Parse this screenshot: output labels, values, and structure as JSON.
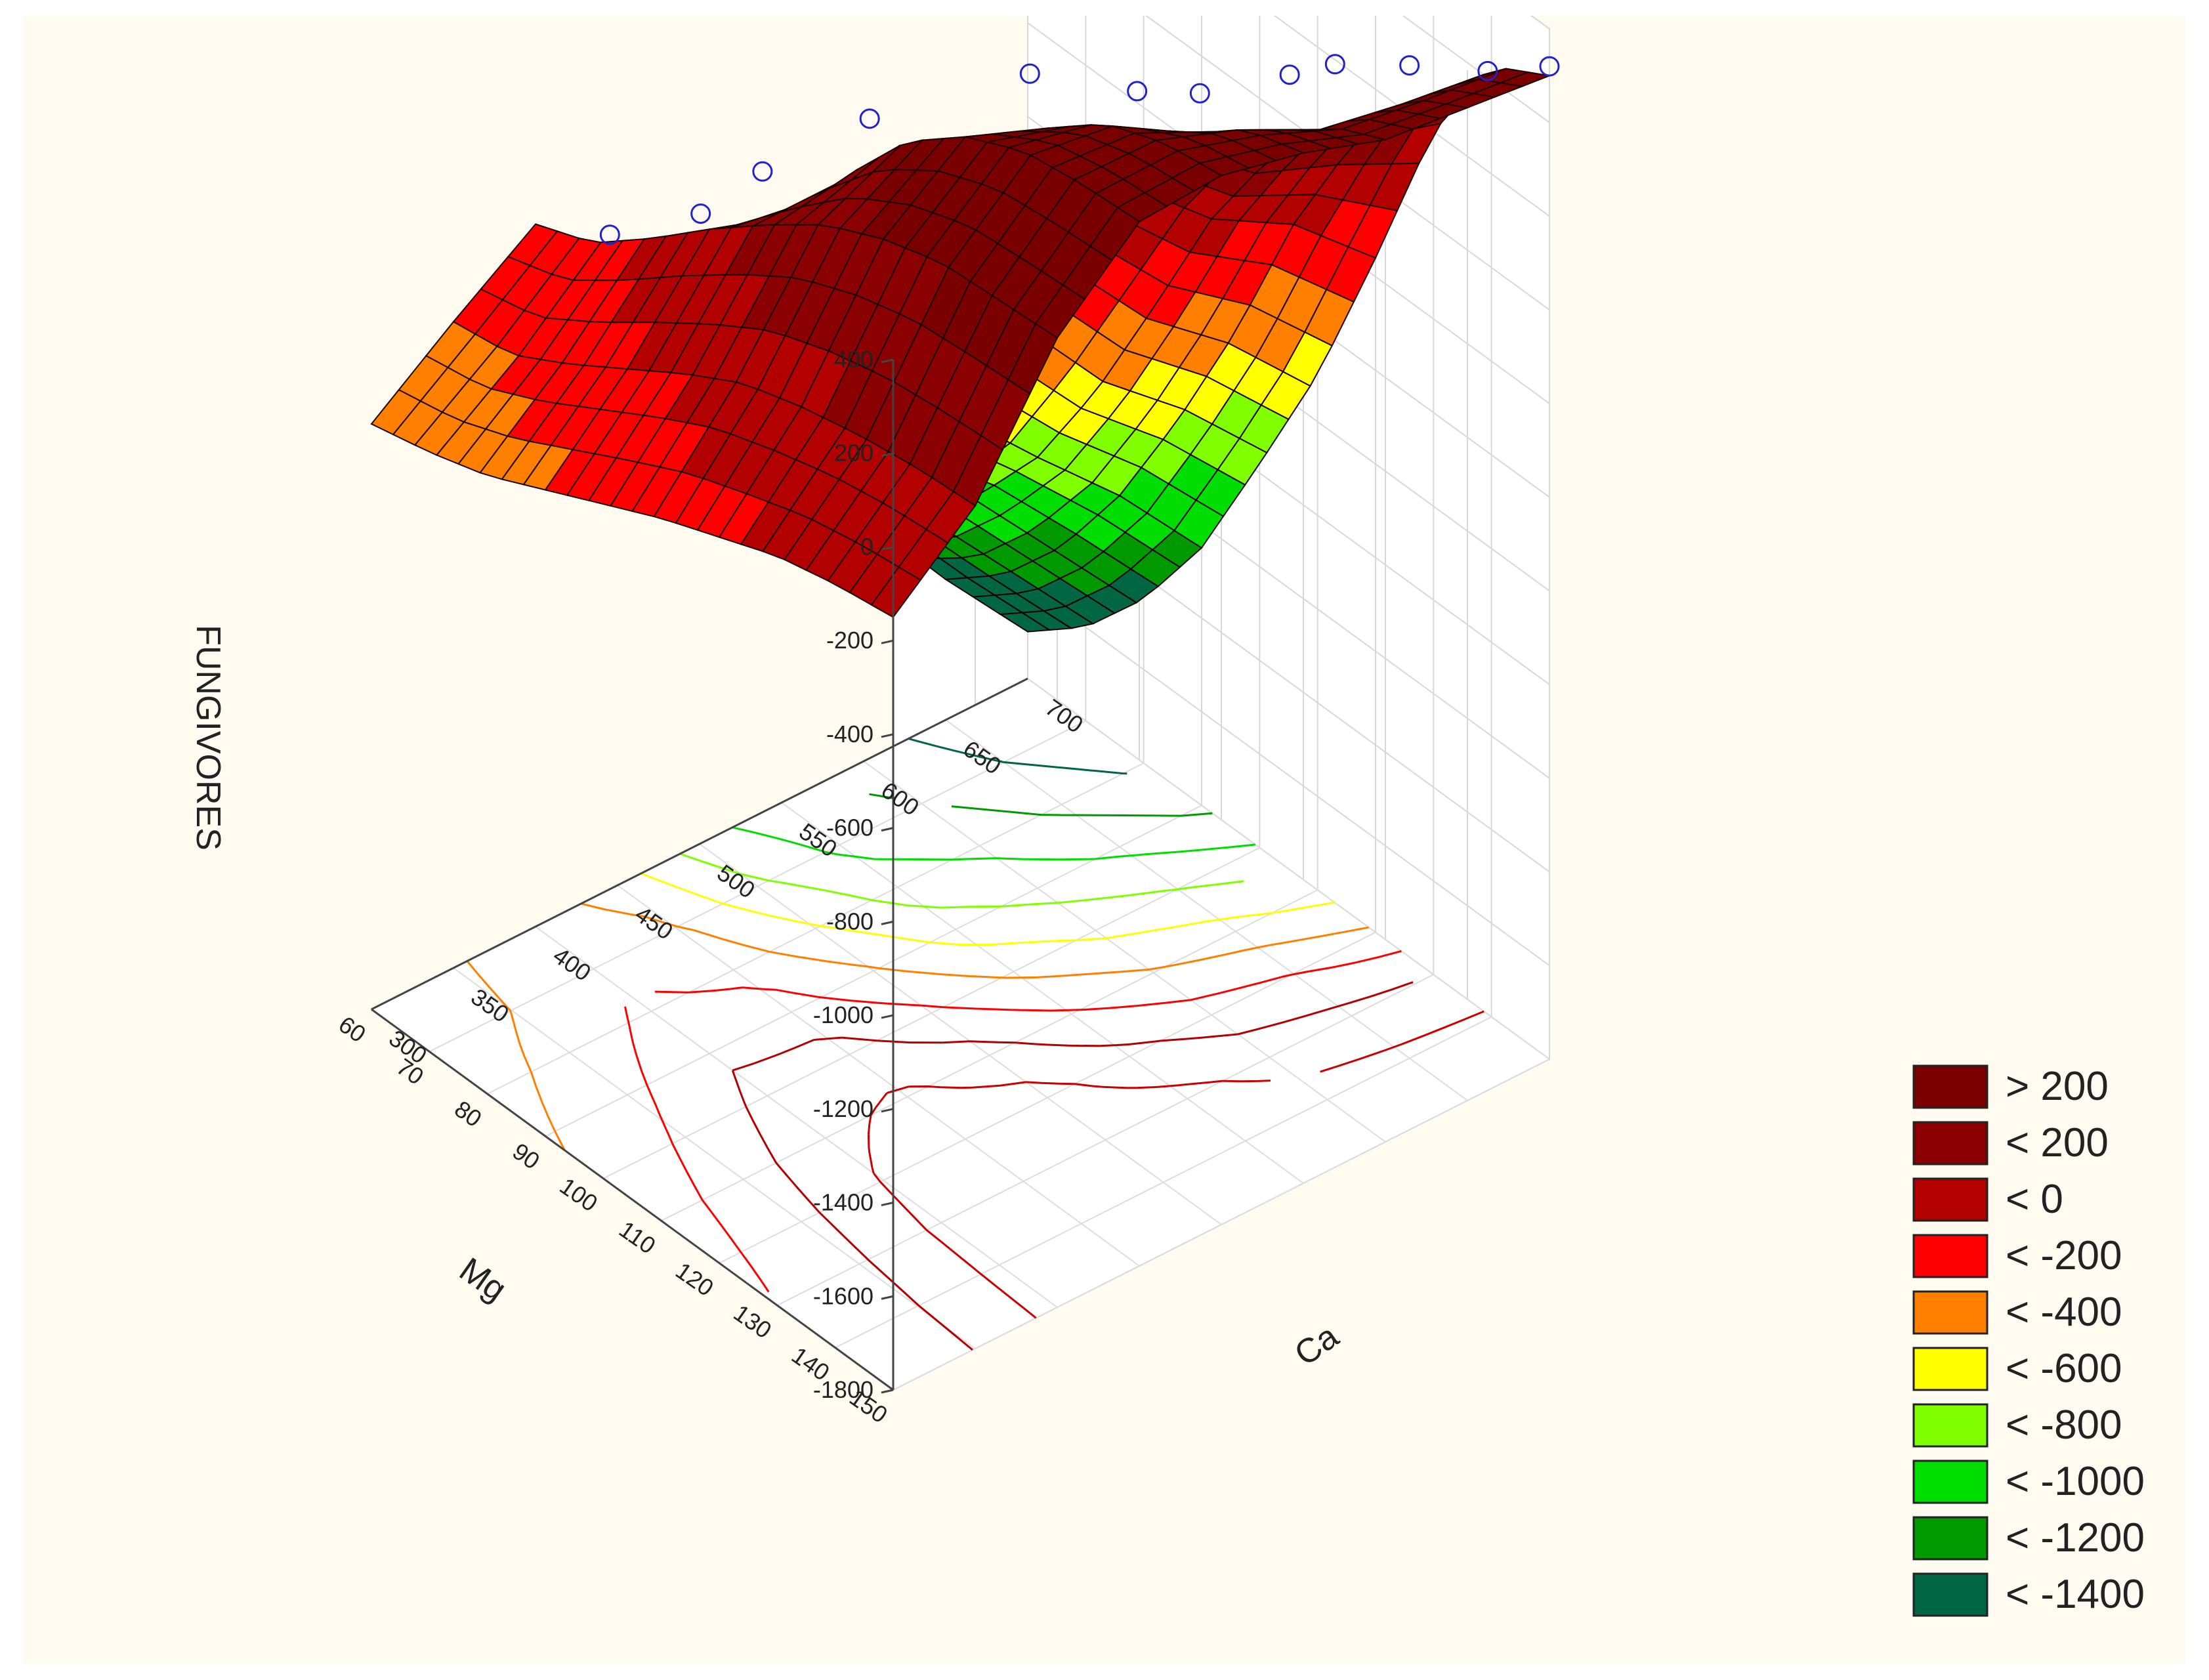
{
  "chart_data": {
    "type": "surface3d",
    "title": "",
    "zlabel": "FUNGIVORES",
    "xlabel": "Mg",
    "ylabel": "Ca",
    "x_ticks": [
      "150",
      "140",
      "130",
      "120",
      "110",
      "100",
      "90",
      "80",
      "70",
      "60"
    ],
    "x_range": [
      60,
      150
    ],
    "y_ticks": [
      "300",
      "350",
      "400",
      "450",
      "500",
      "550",
      "600",
      "650",
      "700"
    ],
    "y_range": [
      300,
      700
    ],
    "z_ticks": [
      "400",
      "200",
      "0",
      "-200",
      "-400",
      "-600",
      "-800",
      "-1000",
      "-1200",
      "-1400",
      "-1600",
      "-1800"
    ],
    "z_range": [
      -1800,
      400
    ],
    "grid": true,
    "background": "#fffbf0",
    "legend_placement": "bottom-right",
    "legend": [
      {
        "label": "> 200",
        "color": "#7a0000"
      },
      {
        "label": "< 200",
        "color": "#8b0000"
      },
      {
        "label": "< 0",
        "color": "#b30000"
      },
      {
        "label": "< -200",
        "color": "#ff0000"
      },
      {
        "label": "< -400",
        "color": "#ff8000"
      },
      {
        "label": "< -600",
        "color": "#ffff00"
      },
      {
        "label": "< -800",
        "color": "#80ff00"
      },
      {
        "label": "< -1000",
        "color": "#00dd00"
      },
      {
        "label": "< -1200",
        "color": "#009900"
      },
      {
        "label": "< -1400",
        "color": "#006644"
      }
    ],
    "surface_grid": {
      "mg_values": [
        60,
        70,
        80,
        90,
        100,
        110,
        120,
        130,
        140,
        150
      ],
      "ca_values": [
        300,
        350,
        400,
        450,
        500,
        550,
        600,
        650,
        700
      ],
      "z": [
        [
          -550,
          -420,
          -300,
          -480,
          -900,
          -1150,
          -1280,
          -1500,
          -1700
        ],
        [
          -520,
          -400,
          -250,
          -380,
          -760,
          -1050,
          -1200,
          -1400,
          -1600
        ],
        [
          -480,
          -330,
          -150,
          -260,
          -580,
          -900,
          -1050,
          -1250,
          -1450
        ],
        [
          -420,
          -250,
          -40,
          -100,
          -380,
          -700,
          -880,
          -1050,
          -1250
        ],
        [
          -360,
          -170,
          60,
          80,
          -160,
          -440,
          -650,
          -800,
          -980
        ],
        [
          -300,
          -100,
          150,
          240,
          80,
          -180,
          -380,
          -520,
          -700
        ],
        [
          -250,
          -60,
          210,
          340,
          270,
          60,
          -100,
          -200,
          -360
        ],
        [
          -200,
          -30,
          250,
          400,
          370,
          260,
          120,
          60,
          0
        ],
        [
          -170,
          -10,
          260,
          420,
          420,
          360,
          280,
          250,
          230
        ],
        [
          -150,
          0,
          270,
          430,
          440,
          400,
          340,
          320,
          300
        ]
      ],
      "observed_points": [
        {
          "mg": 150,
          "ca": 700,
          "z": 320
        },
        {
          "mg": 145,
          "ca": 680,
          "z": 300
        },
        {
          "mg": 140,
          "ca": 650,
          "z": 320
        },
        {
          "mg": 130,
          "ca": 640,
          "z": 250
        },
        {
          "mg": 125,
          "ca": 630,
          "z": 200
        },
        {
          "mg": 118,
          "ca": 600,
          "z": 150
        },
        {
          "mg": 110,
          "ca": 590,
          "z": 100
        },
        {
          "mg": 100,
          "ca": 560,
          "z": 100
        },
        {
          "mg": 95,
          "ca": 480,
          "z": 100
        },
        {
          "mg": 85,
          "ca": 450,
          "z": -50
        },
        {
          "mg": 80,
          "ca": 430,
          "z": -150
        },
        {
          "mg": 70,
          "ca": 410,
          "z": -250
        }
      ]
    }
  }
}
